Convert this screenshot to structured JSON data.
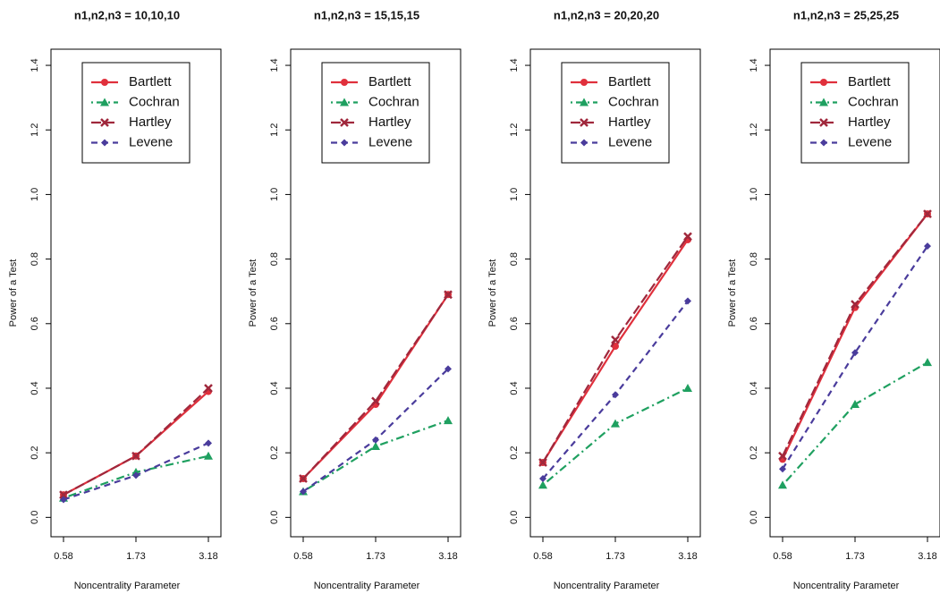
{
  "chart_data": [
    {
      "type": "line",
      "title": "n1,n2,n3 = 10,10,10",
      "xlabel": "Noncentrality Parameter",
      "ylabel": "Power of a Test",
      "categories": [
        "0.58",
        "1.73",
        "3.18"
      ],
      "ylim": [
        -0.06,
        1.45
      ],
      "yticks": [
        {
          "value": 0,
          "label": "0.0"
        },
        0.2,
        0.4,
        0.6,
        0.8,
        {
          "value": 1,
          "label": "1.0"
        },
        1.2,
        1.4
      ],
      "legend": "top-left",
      "series": [
        {
          "name": "Bartlett",
          "color": "#e0303c",
          "linestyle": "solid",
          "marker": "circle",
          "values": [
            0.07,
            0.19,
            0.39
          ]
        },
        {
          "name": "Cochran",
          "color": "#1fa060",
          "linestyle": "dotdash",
          "marker": "triangle",
          "values": [
            0.06,
            0.14,
            0.19
          ]
        },
        {
          "name": "Hartley",
          "color": "#a0283c",
          "linestyle": "longdash",
          "marker": "cross",
          "values": [
            0.07,
            0.19,
            0.4
          ]
        },
        {
          "name": "Levene",
          "color": "#4a3c9c",
          "linestyle": "dashed",
          "marker": "diamond",
          "values": [
            0.055,
            0.13,
            0.23
          ]
        }
      ]
    },
    {
      "type": "line",
      "title": "n1,n2,n3 = 15,15,15",
      "xlabel": "Noncentrality Parameter",
      "ylabel": "Power of a Test",
      "categories": [
        "0.58",
        "1.73",
        "3.18"
      ],
      "ylim": [
        -0.06,
        1.45
      ],
      "yticks": [
        {
          "value": 0,
          "label": "0.0"
        },
        0.2,
        0.4,
        0.6,
        0.8,
        {
          "value": 1,
          "label": "1.0"
        },
        1.2,
        1.4
      ],
      "legend": "top-left",
      "series": [
        {
          "name": "Bartlett",
          "color": "#e0303c",
          "linestyle": "solid",
          "marker": "circle",
          "values": [
            0.12,
            0.35,
            0.69
          ]
        },
        {
          "name": "Cochran",
          "color": "#1fa060",
          "linestyle": "dotdash",
          "marker": "triangle",
          "values": [
            0.08,
            0.22,
            0.3
          ]
        },
        {
          "name": "Hartley",
          "color": "#a0283c",
          "linestyle": "longdash",
          "marker": "cross",
          "values": [
            0.12,
            0.36,
            0.69
          ]
        },
        {
          "name": "Levene",
          "color": "#4a3c9c",
          "linestyle": "dashed",
          "marker": "diamond",
          "values": [
            0.08,
            0.24,
            0.46
          ]
        }
      ]
    },
    {
      "type": "line",
      "title": "n1,n2,n3 = 20,20,20",
      "xlabel": "Noncentrality Parameter",
      "ylabel": "Power of a Test",
      "categories": [
        "0.58",
        "1.73",
        "3.18"
      ],
      "ylim": [
        -0.06,
        1.45
      ],
      "yticks": [
        {
          "value": 0,
          "label": "0.0"
        },
        0.2,
        0.4,
        0.6,
        0.8,
        {
          "value": 1,
          "label": "1.0"
        },
        1.2,
        1.4
      ],
      "legend": "top-left",
      "series": [
        {
          "name": "Bartlett",
          "color": "#e0303c",
          "linestyle": "solid",
          "marker": "circle",
          "values": [
            0.17,
            0.53,
            0.86
          ]
        },
        {
          "name": "Cochran",
          "color": "#1fa060",
          "linestyle": "dotdash",
          "marker": "triangle",
          "values": [
            0.1,
            0.29,
            0.4
          ]
        },
        {
          "name": "Hartley",
          "color": "#a0283c",
          "linestyle": "longdash",
          "marker": "cross",
          "values": [
            0.17,
            0.55,
            0.87
          ]
        },
        {
          "name": "Levene",
          "color": "#4a3c9c",
          "linestyle": "dashed",
          "marker": "diamond",
          "values": [
            0.12,
            0.38,
            0.67
          ]
        }
      ]
    },
    {
      "type": "line",
      "title": "n1,n2,n3 = 25,25,25",
      "xlabel": "Noncentrality Parameter",
      "ylabel": "Power of a Test",
      "categories": [
        "0.58",
        "1.73",
        "3.18"
      ],
      "ylim": [
        -0.06,
        1.45
      ],
      "yticks": [
        {
          "value": 0,
          "label": "0.0"
        },
        0.2,
        0.4,
        0.6,
        0.8,
        {
          "value": 1,
          "label": "1.0"
        },
        1.2,
        1.4
      ],
      "legend": "top-left",
      "series": [
        {
          "name": "Bartlett",
          "color": "#e0303c",
          "linestyle": "solid",
          "marker": "circle",
          "values": [
            0.18,
            0.65,
            0.94
          ]
        },
        {
          "name": "Cochran",
          "color": "#1fa060",
          "linestyle": "dotdash",
          "marker": "triangle",
          "values": [
            0.1,
            0.35,
            0.48
          ]
        },
        {
          "name": "Hartley",
          "color": "#a0283c",
          "linestyle": "longdash",
          "marker": "cross",
          "values": [
            0.19,
            0.66,
            0.94
          ]
        },
        {
          "name": "Levene",
          "color": "#4a3c9c",
          "linestyle": "dashed",
          "marker": "diamond",
          "values": [
            0.15,
            0.51,
            0.84
          ]
        }
      ]
    }
  ]
}
